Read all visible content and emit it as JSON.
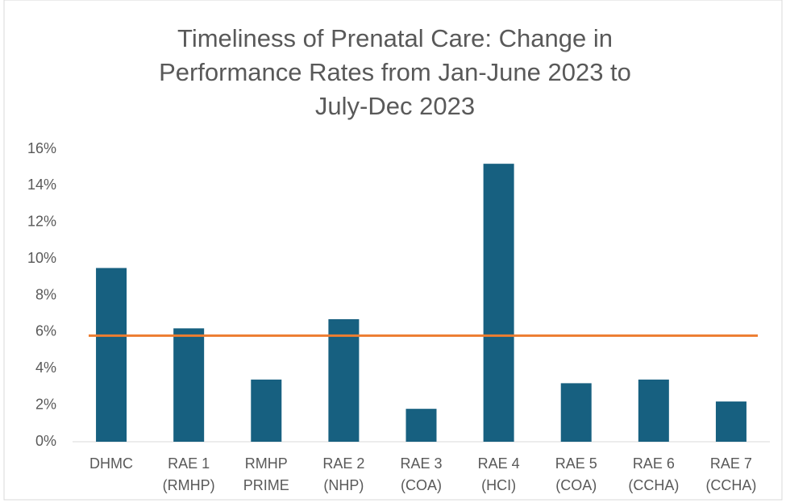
{
  "chart_data": {
    "type": "bar",
    "title": [
      "Timeliness of Prenatal Care: Change in",
      "Performance Rates from Jan-June 2023 to",
      "July-Dec 2023"
    ],
    "categories": [
      [
        "DHMC"
      ],
      [
        "RAE 1",
        "(RMHP)"
      ],
      [
        "RMHP",
        "PRIME"
      ],
      [
        "RAE 2",
        "(NHP)"
      ],
      [
        "RAE 3",
        "(COA)"
      ],
      [
        "RAE 4",
        "(HCI)"
      ],
      [
        "RAE 5",
        "(COA)"
      ],
      [
        "RAE 6",
        "(CCHA)"
      ],
      [
        "RAE 7",
        "(CCHA)"
      ]
    ],
    "series": [
      {
        "type": "bar",
        "color": "#176080",
        "values": [
          9.5,
          6.2,
          3.4,
          6.7,
          1.8,
          15.2,
          3.2,
          3.4,
          2.2
        ]
      },
      {
        "type": "line",
        "color": "#ed7d31",
        "values": [
          5.8,
          5.8,
          5.8,
          5.8,
          5.8,
          5.8,
          5.8,
          5.8,
          5.8
        ]
      }
    ],
    "ylim": [
      0,
      16
    ],
    "yticks": [
      {
        "value": 0,
        "label": "0%"
      },
      {
        "value": 2,
        "label": "2%"
      },
      {
        "value": 4,
        "label": "4%"
      },
      {
        "value": 6,
        "label": "6%"
      },
      {
        "value": 8,
        "label": "8%"
      },
      {
        "value": 10,
        "label": "10%"
      },
      {
        "value": 12,
        "label": "12%"
      },
      {
        "value": 14,
        "label": "14%"
      },
      {
        "value": 16,
        "label": "16%"
      }
    ],
    "grid": false
  }
}
